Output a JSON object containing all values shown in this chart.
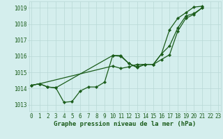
{
  "title": "Graphe pression niveau de la mer (hPa)",
  "hours": [
    0,
    1,
    2,
    3,
    4,
    5,
    6,
    7,
    8,
    9,
    10,
    11,
    12,
    13,
    14,
    15,
    16,
    17,
    18,
    19,
    20,
    21,
    22,
    23
  ],
  "ylim": [
    1012.6,
    1019.4
  ],
  "xlim": [
    -0.3,
    23.3
  ],
  "yticks": [
    1013,
    1014,
    1015,
    1016,
    1017,
    1018,
    1019
  ],
  "background_color": "#d4eeed",
  "grid_color": "#b8d8d5",
  "line_color": "#1a5c1a",
  "marker": "D",
  "marker_size": 2.2,
  "line_width": 0.9,
  "title_color": "#1a5c1a",
  "title_fontsize": 6.5,
  "tick_fontsize": 5.5,
  "series_a": {
    "x": [
      0,
      1,
      2,
      3,
      4,
      5,
      6,
      7,
      8,
      9,
      10,
      11,
      12,
      13,
      14,
      15,
      16,
      17,
      18,
      19,
      20,
      21
    ],
    "y": [
      1014.2,
      1014.3,
      1014.1,
      1014.05,
      1013.15,
      1013.2,
      1013.85,
      1014.1,
      1014.1,
      1014.4,
      1016.05,
      1016.05,
      1015.55,
      1015.3,
      1015.5,
      1015.5,
      1015.8,
      1016.1,
      1017.55,
      1018.35,
      1018.6,
      1019.0
    ]
  },
  "series_b": {
    "x": [
      0,
      1,
      10,
      11,
      12,
      13,
      14,
      15,
      16,
      17,
      18,
      19,
      20,
      21
    ],
    "y": [
      1014.2,
      1014.3,
      1015.4,
      1015.25,
      1015.35,
      1015.5,
      1015.5,
      1015.5,
      1016.15,
      1016.65,
      1017.75,
      1018.5,
      1018.65,
      1019.0
    ]
  },
  "series_c": {
    "x": [
      0,
      1,
      2,
      3,
      10,
      11,
      12,
      13,
      14,
      15,
      16,
      17,
      18,
      19,
      20,
      21
    ],
    "y": [
      1014.2,
      1014.3,
      1014.1,
      1014.05,
      1016.05,
      1016.0,
      1015.55,
      1015.35,
      1015.5,
      1015.5,
      1016.15,
      1017.65,
      1018.35,
      1018.7,
      1019.05,
      1019.1
    ]
  }
}
